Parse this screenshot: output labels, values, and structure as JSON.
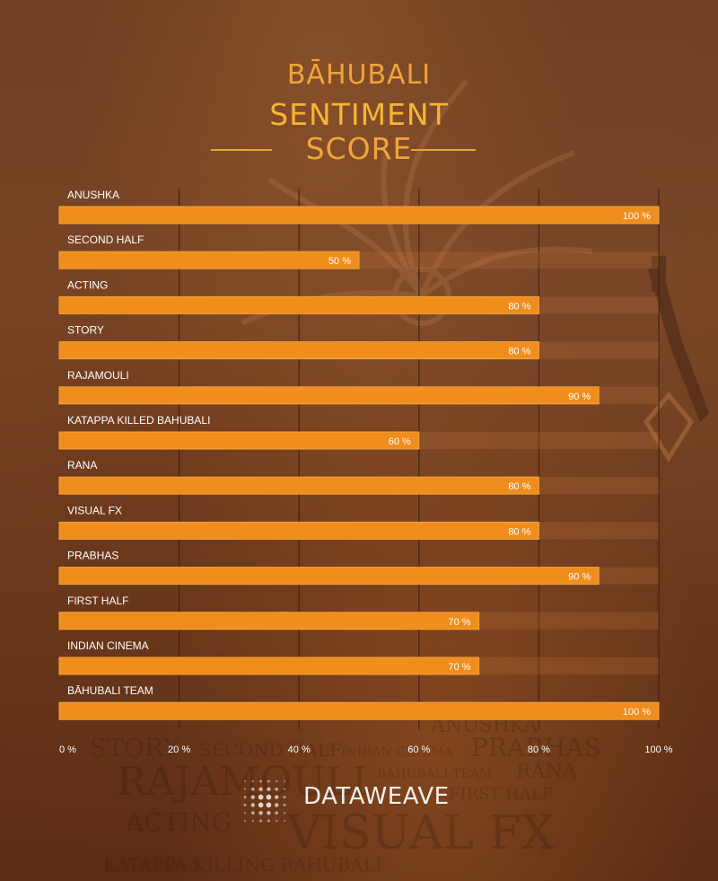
{
  "title": {
    "line1": "BĀHUBALI",
    "line2": "SENTIMENT",
    "line3": "SCORE"
  },
  "brand": {
    "name": "DATAWEAVE",
    "icon": "dot-grid-logo-icon"
  },
  "watermark_words": [
    "ANUSHKA",
    "STORY",
    "SECOND HALF",
    "INDIAN CINEMA",
    "PRABHAS",
    "RAJAMOULI",
    "BAHUBALI TEAM",
    "RANA",
    "FIRST HALF",
    "ACTING",
    "VISUAL FX",
    "KATAPPA KILLING BAHUBALI"
  ],
  "colors": {
    "bar": "#ef8d1d",
    "bar_edge": "#f5a43a",
    "title": "#f2b23c",
    "label": "#ffffff",
    "gridline": "#3a1d0c"
  },
  "chart_data": {
    "type": "bar",
    "orientation": "horizontal",
    "categories": [
      "ANUSHKA",
      "SECOND HALF",
      "ACTING",
      "STORY",
      "RAJAMOULI",
      "KATAPPA KILLED BAHUBALI",
      "RANA",
      "VISUAL FX",
      "PRABHAS",
      "FIRST HALF",
      "INDIAN CINEMA",
      "BĀHUBALI TEAM"
    ],
    "values": [
      100,
      50,
      80,
      80,
      90,
      60,
      80,
      80,
      90,
      70,
      70,
      100
    ],
    "value_labels": [
      "100 %",
      "50 %",
      "80 %",
      "80 %",
      "90 %",
      "60 %",
      "80 %",
      "80 %",
      "90 %",
      "70 %",
      "70 %",
      "100 %"
    ],
    "xlim": [
      0,
      100
    ],
    "xticks": [
      0,
      20,
      40,
      60,
      80,
      100
    ],
    "xtick_labels": [
      "0 %",
      "20 %",
      "40 %",
      "60 %",
      "80 %",
      "100 %"
    ],
    "grid": true,
    "legend": "none"
  }
}
